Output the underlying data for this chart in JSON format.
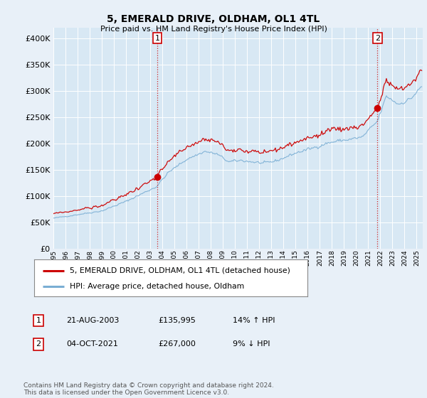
{
  "title": "5, EMERALD DRIVE, OLDHAM, OL1 4TL",
  "subtitle": "Price paid vs. HM Land Registry's House Price Index (HPI)",
  "background_color": "#e8f0f8",
  "plot_bg_color": "#d8e8f4",
  "grid_color": "#c8d8e8",
  "ylim": [
    0,
    420000
  ],
  "yticks": [
    0,
    50000,
    100000,
    150000,
    200000,
    250000,
    300000,
    350000,
    400000
  ],
  "sale1_year": 2003,
  "sale1_month": 8,
  "sale1_price": 135995,
  "sale2_year": 2021,
  "sale2_month": 10,
  "sale2_price": 267000,
  "legend_line1": "5, EMERALD DRIVE, OLDHAM, OL1 4TL (detached house)",
  "legend_line2": "HPI: Average price, detached house, Oldham",
  "table_row1": [
    "1",
    "21-AUG-2003",
    "£135,995",
    "14% ↑ HPI"
  ],
  "table_row2": [
    "2",
    "04-OCT-2021",
    "£267,000",
    "9% ↓ HPI"
  ],
  "footer": "Contains HM Land Registry data © Crown copyright and database right 2024.\nThis data is licensed under the Open Government Licence v3.0.",
  "hpi_color": "#7aaed4",
  "price_color": "#cc0000",
  "vline_color": "#cc0000",
  "xmin": 1995.0,
  "xmax": 2025.5
}
